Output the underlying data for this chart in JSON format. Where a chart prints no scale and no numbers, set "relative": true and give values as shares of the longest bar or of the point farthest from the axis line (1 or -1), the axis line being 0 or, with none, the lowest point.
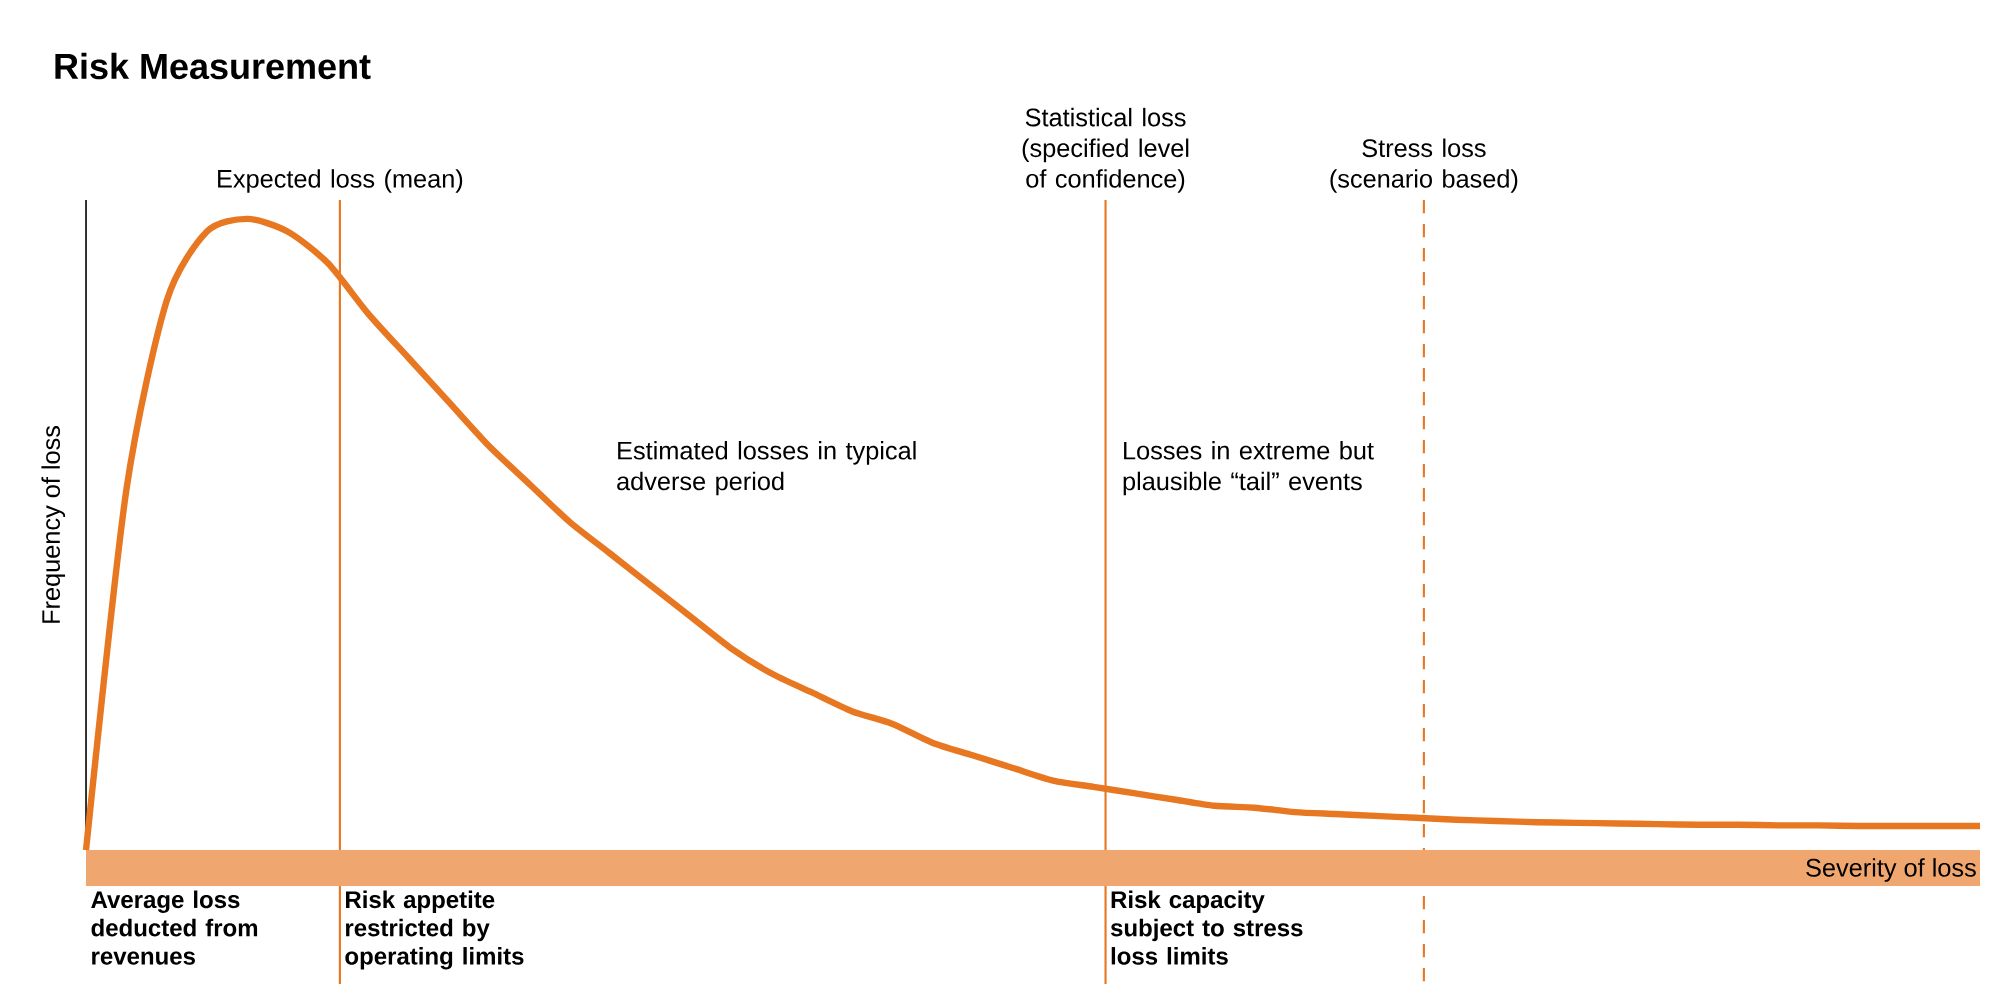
{
  "chart_data": {
    "type": "line",
    "title": "Risk Measurement",
    "xlabel": "Severity of loss",
    "ylabel": "Frequency of loss",
    "relative": true,
    "categories": [
      null,
      null,
      null,
      null,
      null,
      null,
      null,
      null,
      null,
      null,
      null,
      null,
      null,
      null,
      null,
      null,
      null,
      null,
      null,
      null,
      null,
      null,
      null,
      null,
      null,
      null,
      null,
      null,
      null,
      null,
      null,
      null,
      null,
      null,
      null,
      null,
      null,
      null,
      null,
      null,
      null,
      null,
      null,
      null,
      null,
      null,
      null,
      null
    ],
    "series": [
      {
        "color": "#e87722",
        "values": [
          0,
          0.57,
          0.87,
          0.98,
          1.0,
          0.98,
          0.93,
          0.85,
          0.78,
          0.71,
          0.64,
          0.58,
          0.52,
          0.47,
          0.42,
          0.37,
          0.32,
          0.28,
          0.25,
          0.22,
          0.2,
          0.17,
          0.15,
          0.13,
          0.11,
          0.1,
          0.09,
          0.08,
          0.07,
          0.067,
          0.06,
          0.057,
          0.054,
          0.051,
          0.048,
          0.046,
          0.044,
          0.043,
          0.042,
          0.041,
          0.04,
          0.04,
          0.039,
          0.039,
          0.038,
          0.038,
          0.038,
          0.038
        ]
      }
    ],
    "annotations": [
      "Expected loss (mean)",
      "Statistical loss (specified level of confidence)",
      "Stress loss (scenario based)",
      "Estimated losses in typical adverse period",
      "Losses in extreme but plausible “tail” events",
      "Average loss deducted from revenues",
      "Risk appetite restricted by operating limits",
      "Risk capacity subject to stress loss limits"
    ]
  }
}
